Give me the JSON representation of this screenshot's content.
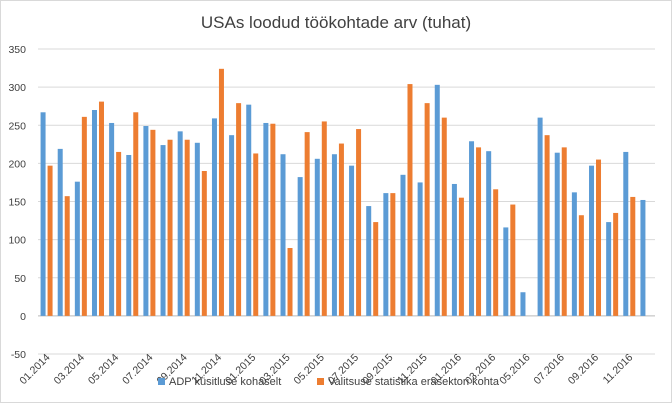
{
  "chart_data": {
    "type": "bar",
    "title": "USAs loodud töökohtade arv (tuhat)",
    "xlabel": "",
    "ylabel": "",
    "ylim": [
      -50,
      350
    ],
    "yticks": [
      -50,
      0,
      50,
      100,
      150,
      200,
      250,
      300,
      350
    ],
    "grid": true,
    "legend_position": "bottom",
    "colors": {
      "adp": "#5B9BD5",
      "gov": "#ED7D31",
      "grid": "#d9d9d9",
      "axis": "#bfbfbf",
      "text": "#404040"
    },
    "categories": [
      "01.2014",
      "02.2014",
      "03.2014",
      "04.2014",
      "05.2014",
      "06.2014",
      "07.2014",
      "08.2014",
      "09.2014",
      "10.2014",
      "11.2014",
      "12.2014",
      "01.2015",
      "02.2015",
      "03.2015",
      "04.2015",
      "05.2015",
      "06.2015",
      "07.2015",
      "08.2015",
      "09.2015",
      "10.2015",
      "11.2015",
      "12.2015",
      "01.2016",
      "02.2016",
      "03.2016",
      "04.2016",
      "05.2016",
      "06.2016",
      "07.2016",
      "08.2016",
      "09.2016",
      "10.2016",
      "11.2016",
      "12.2016"
    ],
    "xtick_labels": [
      "01.2014",
      "",
      "03.2014",
      "",
      "05.2014",
      "",
      "07.2014",
      "",
      "09.2014",
      "",
      "11.2014",
      "",
      "01.2015",
      "",
      "03.2015",
      "",
      "05.2015",
      "",
      "07.2015",
      "",
      "09.2015",
      "",
      "11.2015",
      "",
      "01.2016",
      "",
      "03.2016",
      "",
      "05.2016",
      "",
      "07.2016",
      "",
      "09.2016",
      "",
      "11.2016",
      ""
    ],
    "series": [
      {
        "name": "ADP küsitluse kohaselt",
        "values": [
          267,
          219,
          176,
          270,
          253,
          211,
          249,
          224,
          242,
          227,
          259,
          237,
          277,
          253,
          212,
          182,
          206,
          212,
          197,
          144,
          161,
          185,
          175,
          303,
          173,
          229,
          216,
          116,
          31,
          260,
          214,
          162,
          197,
          123,
          215,
          152
        ]
      },
      {
        "name": "Valitsuse statistika erasektori kohta",
        "values": [
          197,
          157,
          261,
          281,
          215,
          267,
          244,
          231,
          231,
          190,
          324,
          279,
          213,
          252,
          89,
          241,
          255,
          226,
          245,
          123,
          161,
          304,
          279,
          260,
          155,
          221,
          166,
          146,
          null,
          237,
          221,
          132,
          205,
          135,
          156,
          null
        ]
      }
    ]
  }
}
